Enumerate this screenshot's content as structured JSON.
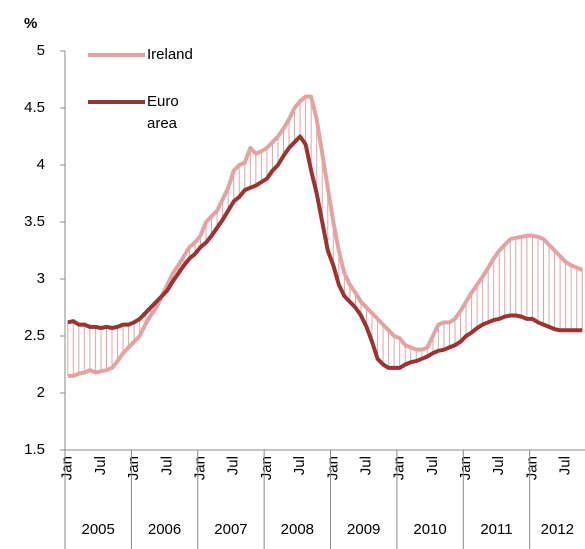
{
  "chart_data": {
    "type": "line",
    "y_label": "%",
    "categories": [
      "Jan",
      null,
      null,
      null,
      null,
      null,
      "Jul",
      null,
      null,
      null,
      null,
      null,
      "Jan",
      null,
      null,
      null,
      null,
      null,
      "Jul",
      null,
      null,
      null,
      null,
      null,
      "Jan",
      null,
      null,
      null,
      null,
      null,
      "Jul",
      null,
      null,
      null,
      null,
      null,
      "Jan",
      null,
      null,
      null,
      null,
      null,
      "Jul",
      null,
      null,
      null,
      null,
      null,
      "Jan",
      null,
      null,
      null,
      null,
      null,
      "Jul",
      null,
      null,
      null,
      null,
      null,
      "Jan",
      null,
      null,
      null,
      null,
      null,
      "Jul",
      null,
      null,
      null,
      null,
      null,
      "Jan",
      null,
      null,
      null,
      null,
      null,
      "Jul",
      null,
      null,
      null,
      null,
      null,
      "Jan",
      null,
      null,
      null,
      null,
      null,
      "Jul",
      null,
      null,
      null
    ],
    "year_groups": [
      "2005",
      "2006",
      "2007",
      "2008",
      "2009",
      "2010",
      "2011",
      "2012"
    ],
    "series": [
      {
        "name": "Ireland",
        "color": "#e3a3a3",
        "values": [
          2.15,
          2.15,
          2.17,
          2.18,
          2.2,
          2.18,
          2.19,
          2.2,
          2.22,
          2.28,
          2.35,
          2.4,
          2.45,
          2.5,
          2.6,
          2.68,
          2.75,
          2.85,
          2.95,
          3.05,
          3.12,
          3.2,
          3.28,
          3.32,
          3.38,
          3.5,
          3.55,
          3.6,
          3.7,
          3.8,
          3.95,
          4.0,
          4.02,
          4.15,
          4.1,
          4.12,
          4.15,
          4.2,
          4.25,
          4.32,
          4.4,
          4.5,
          4.56,
          4.6,
          4.6,
          4.4,
          4.1,
          3.8,
          3.5,
          3.25,
          3.05,
          2.95,
          2.88,
          2.8,
          2.75,
          2.7,
          2.65,
          2.6,
          2.55,
          2.5,
          2.48,
          2.42,
          2.4,
          2.38,
          2.38,
          2.4,
          2.5,
          2.6,
          2.62,
          2.62,
          2.65,
          2.72,
          2.8,
          2.88,
          2.95,
          3.02,
          3.1,
          3.18,
          3.25,
          3.3,
          3.35,
          3.36,
          3.37,
          3.38,
          3.38,
          3.37,
          3.35,
          3.3,
          3.25,
          3.2,
          3.15,
          3.12,
          3.1,
          3.08
        ]
      },
      {
        "name": "Euro area",
        "color": "#9b3333",
        "values": [
          2.62,
          2.63,
          2.6,
          2.6,
          2.58,
          2.58,
          2.57,
          2.58,
          2.57,
          2.58,
          2.6,
          2.6,
          2.62,
          2.65,
          2.7,
          2.75,
          2.8,
          2.85,
          2.9,
          2.98,
          3.05,
          3.12,
          3.18,
          3.22,
          3.28,
          3.32,
          3.38,
          3.45,
          3.52,
          3.6,
          3.68,
          3.72,
          3.78,
          3.8,
          3.82,
          3.85,
          3.88,
          3.95,
          4.0,
          4.08,
          4.15,
          4.2,
          4.25,
          4.18,
          3.95,
          3.75,
          3.5,
          3.25,
          3.12,
          2.95,
          2.85,
          2.8,
          2.75,
          2.68,
          2.58,
          2.45,
          2.3,
          2.25,
          2.22,
          2.22,
          2.22,
          2.25,
          2.27,
          2.28,
          2.3,
          2.32,
          2.35,
          2.37,
          2.38,
          2.4,
          2.42,
          2.45,
          2.5,
          2.53,
          2.57,
          2.6,
          2.62,
          2.64,
          2.65,
          2.67,
          2.68,
          2.68,
          2.67,
          2.65,
          2.65,
          2.62,
          2.6,
          2.58,
          2.56,
          2.55,
          2.55,
          2.55,
          2.55,
          2.55
        ]
      }
    ],
    "ylim": [
      1.5,
      5
    ],
    "yticks": [
      1.5,
      2,
      2.5,
      3,
      3.5,
      4,
      4.5,
      5
    ],
    "grid": false,
    "legend": "top-left"
  }
}
